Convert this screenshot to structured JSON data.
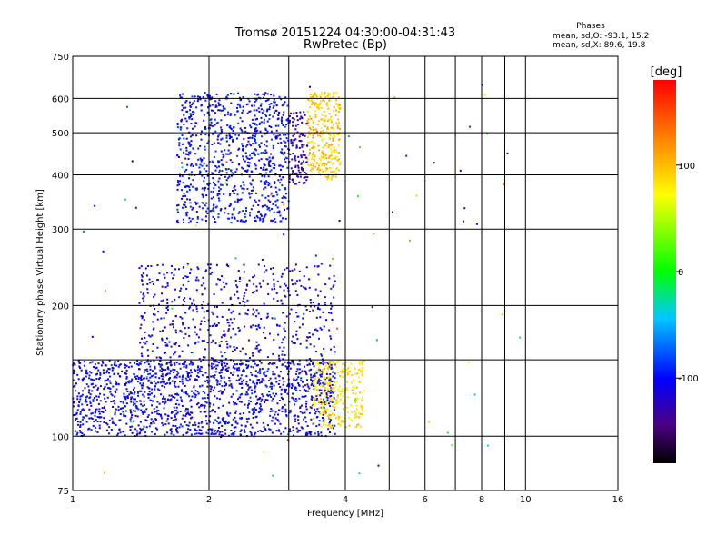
{
  "chart_data": {
    "type": "scatter",
    "title": "Tromsø 20151224 04:30:00-04:31:43",
    "subtitle": "RwPretec (Bp)",
    "xlabel": "Frequency [MHz]",
    "ylabel": "Stationary phase Virtual Height [km]",
    "x_scale": "log",
    "y_scale": "log",
    "xlim": [
      1,
      16
    ],
    "ylim": [
      75,
      750
    ],
    "x_ticks": [
      1,
      2,
      4,
      6,
      8,
      10,
      16
    ],
    "x_ticks_minor": [
      3,
      5,
      7,
      9
    ],
    "y_ticks": [
      75,
      100,
      200,
      300,
      400,
      500,
      600,
      750
    ],
    "y_ticks_minor": [
      150
    ],
    "grid": true,
    "info_box": {
      "title": "Phases",
      "line1": "mean, sd,O:  -93.1, 15.2",
      "line2": "mean, sd,X:  89.6, 19.8"
    },
    "colorbar": {
      "label": "[deg]",
      "range": [
        -180,
        180
      ],
      "ticks": [
        100,
        0,
        -100
      ]
    },
    "clusters": [
      {
        "name": "F2 trace blue",
        "x": [
          1.7,
          3.0
        ],
        "y": [
          310,
          620
        ],
        "phase": -100,
        "points": 900
      },
      {
        "name": "F2 trace yellow",
        "x": [
          3.3,
          3.9
        ],
        "y": [
          390,
          620
        ],
        "phase": 95,
        "points": 300
      },
      {
        "name": "F2 trace violet",
        "x": [
          3.0,
          3.3
        ],
        "y": [
          380,
          560
        ],
        "phase": -130,
        "points": 120
      },
      {
        "name": "E/Es trace blue",
        "x": [
          1.0,
          3.8
        ],
        "y": [
          100,
          150
        ],
        "phase": -105,
        "points": 1400
      },
      {
        "name": "F1 scatter blue",
        "x": [
          1.4,
          3.8
        ],
        "y": [
          130,
          250
        ],
        "phase": -110,
        "points": 700
      },
      {
        "name": "trace yellow low",
        "x": [
          3.4,
          4.4
        ],
        "y": [
          105,
          150
        ],
        "phase": 85,
        "points": 260
      },
      {
        "name": "sporadic",
        "x": [
          1.0,
          10.0
        ],
        "y": [
          78,
          700
        ],
        "phase": 0,
        "points": 80
      }
    ]
  }
}
